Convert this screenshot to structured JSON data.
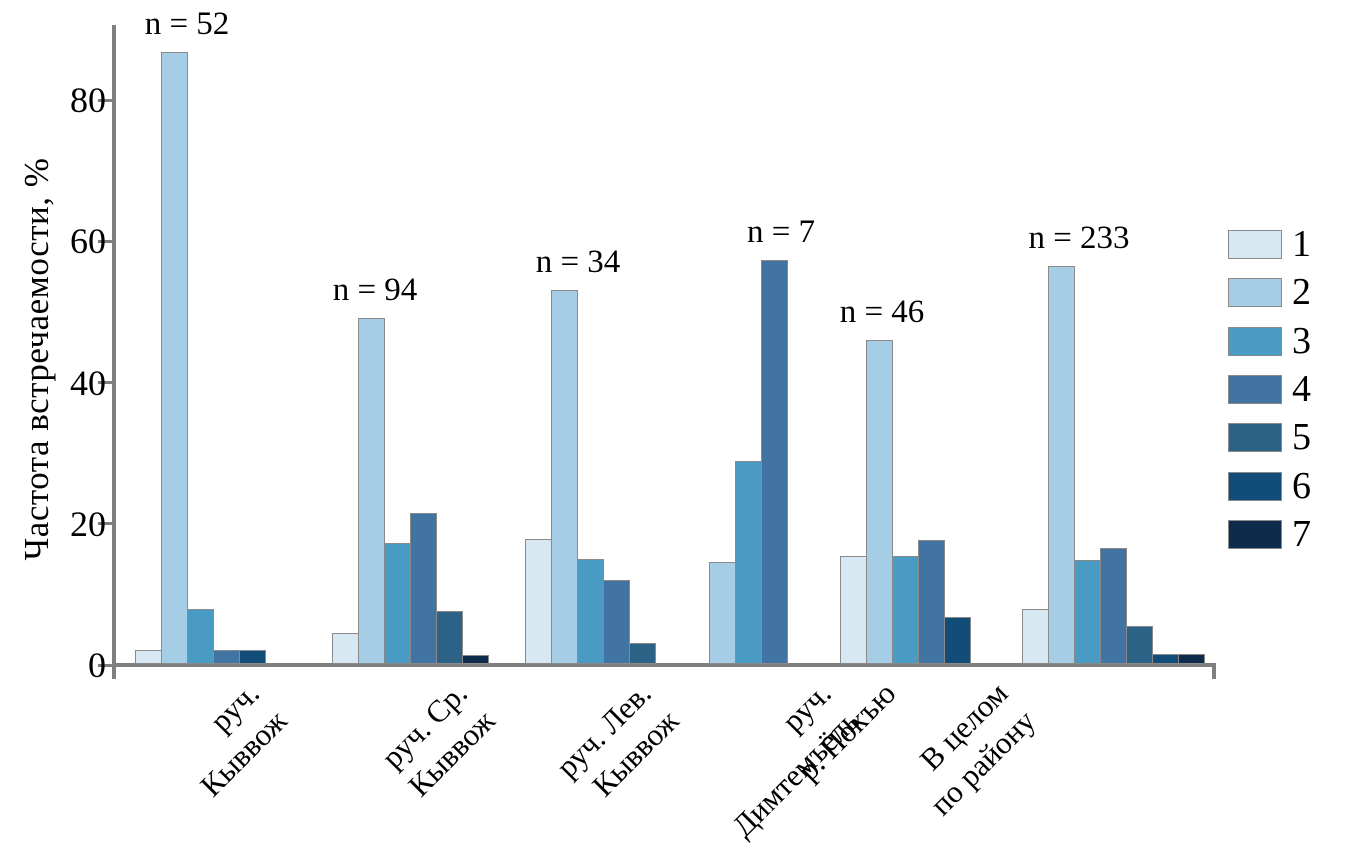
{
  "chart_data": {
    "type": "bar",
    "title": "",
    "ylabel": "Частота встречаемости, %",
    "xlabel": "",
    "ylim": [
      0,
      90
    ],
    "yticks": [
      0,
      20,
      40,
      60,
      80
    ],
    "grid": false,
    "legend_position": "right",
    "categories": [
      "руч.\nКыввож",
      "руч. Ср.\nКыввож",
      "руч. Лев.\nКыввож",
      "руч.\nДимтемъёль",
      "р. Покъю",
      "В целом\nпо району"
    ],
    "n_labels": [
      "n = 52",
      "n = 94",
      "n = 34",
      "n = 7",
      "n = 46",
      "n = 233"
    ],
    "series": [
      {
        "name": "1",
        "color": "#d7e8f3",
        "values": [
          1.9,
          4.3,
          17.6,
          0,
          15.2,
          7.7
        ]
      },
      {
        "name": "2",
        "color": "#a5cde6",
        "values": [
          86.5,
          48.9,
          52.9,
          14.3,
          45.7,
          56.2
        ]
      },
      {
        "name": "3",
        "color": "#4a9bc4",
        "values": [
          7.7,
          17.0,
          14.7,
          28.6,
          15.2,
          14.6
        ]
      },
      {
        "name": "4",
        "color": "#4274a3",
        "values": [
          1.9,
          21.3,
          11.8,
          57.1,
          17.4,
          16.3
        ]
      },
      {
        "name": "5",
        "color": "#2d6287",
        "values": [
          0,
          7.4,
          2.9,
          0,
          0,
          5.2
        ]
      },
      {
        "name": "6",
        "color": "#114d78",
        "values": [
          1.9,
          0,
          0,
          0,
          6.5,
          1.3
        ]
      },
      {
        "name": "7",
        "color": "#0e2b4b",
        "values": [
          0,
          1.1,
          0,
          0,
          0,
          1.3
        ]
      }
    ],
    "axis_color": "#7f7f7f",
    "bar_border_color": "#8a8a8a"
  }
}
